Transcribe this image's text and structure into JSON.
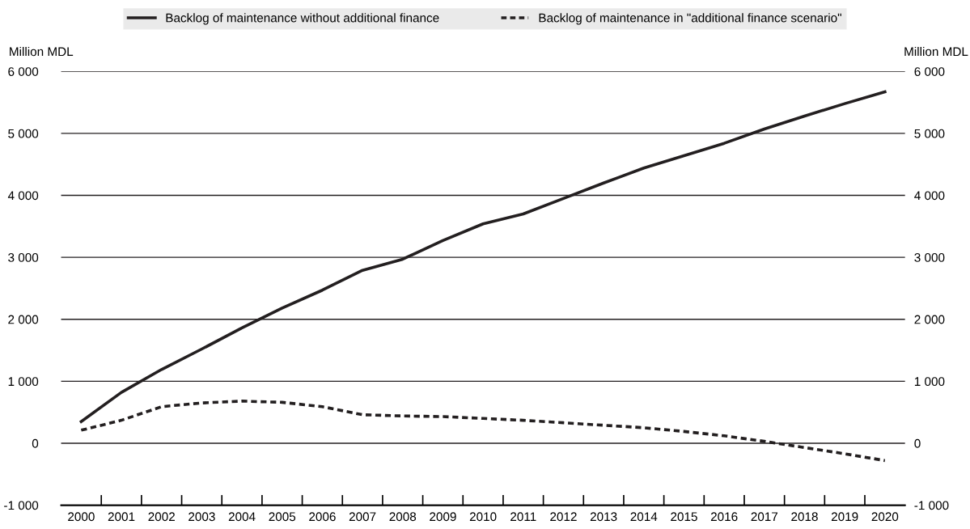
{
  "chart_data": {
    "type": "line",
    "ylabel": "Million MDL",
    "y2label": "Million MDL",
    "categories": [
      "2000",
      "2001",
      "2002",
      "2003",
      "2004",
      "2005",
      "2006",
      "2007",
      "2008",
      "2009",
      "2010",
      "2011",
      "2012",
      "2013",
      "2014",
      "2015",
      "2016",
      "2017",
      "2018",
      "2019",
      "2020"
    ],
    "series": [
      {
        "name": "Backlog of maintenance without additional finance",
        "color": "#231f20",
        "line_style": "solid",
        "values": [
          350,
          820,
          1190,
          1520,
          1860,
          2180,
          2470,
          2790,
          2970,
          3270,
          3540,
          3700,
          3950,
          4200,
          4440,
          4640,
          4840,
          5070,
          5280,
          5480,
          5670
        ]
      },
      {
        "name": "Backlog of maintenance in \"additional finance scenario\"",
        "color": "#231f20",
        "line_style": "dotted",
        "values": [
          210,
          370,
          590,
          650,
          680,
          660,
          590,
          460,
          440,
          430,
          400,
          370,
          330,
          290,
          250,
          190,
          120,
          30,
          -70,
          -170,
          -280
        ]
      }
    ],
    "ylim": [
      -1000,
      6000
    ],
    "yticks": [
      {
        "value": -1000,
        "label": "-1 000"
      },
      {
        "value": 0,
        "label": "0"
      },
      {
        "value": 1000,
        "label": "1 000"
      },
      {
        "value": 2000,
        "label": "2 000"
      },
      {
        "value": 3000,
        "label": "3 000"
      },
      {
        "value": 4000,
        "label": "4 000"
      },
      {
        "value": 5000,
        "label": "5 000"
      },
      {
        "value": 6000,
        "label": "6 000"
      }
    ],
    "y2lim": [
      -1000,
      6000
    ],
    "y2ticks": [
      {
        "value": -1000,
        "label": "-1 000"
      },
      {
        "value": 0,
        "label": "0"
      },
      {
        "value": 1000,
        "label": "1 000"
      },
      {
        "value": 2000,
        "label": "2 000"
      },
      {
        "value": 3000,
        "label": "3 000"
      },
      {
        "value": 4000,
        "label": "4 000"
      },
      {
        "value": 5000,
        "label": "5 000"
      },
      {
        "value": 6000,
        "label": "6 000"
      }
    ],
    "grid": "y",
    "legend": "top",
    "marker": "none"
  }
}
